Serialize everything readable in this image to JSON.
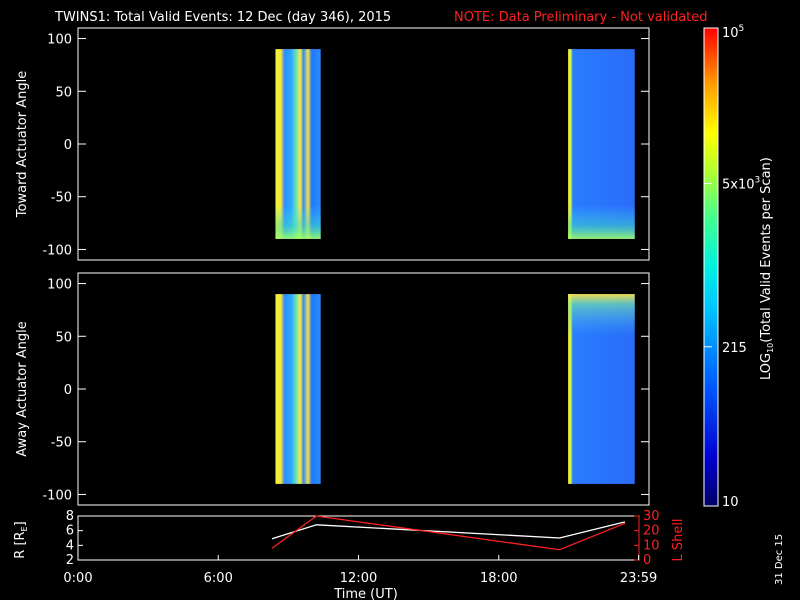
{
  "title": "TWINS1: Total Valid Events: 12 Dec (day 346), 2015",
  "note": "NOTE: Data Preliminary - Not validated",
  "stamp": "31 Dec 15",
  "colors": {
    "note": "#ff2020",
    "lshell": "#ff2020",
    "radius": "#ffffff"
  },
  "chart_data": [
    {
      "type": "heatmap",
      "ylabel": "Toward Actuator Angle",
      "ylim": [
        -110,
        110
      ],
      "yticks": [
        100,
        50,
        0,
        -50,
        -100
      ],
      "y_tick_labels": [
        "100",
        "50",
        "0",
        "-50",
        "-100"
      ],
      "data_blocks": [
        {
          "start_hour": 8.3,
          "end_hour": 10.2,
          "angle_range": [
            -90,
            90
          ]
        },
        {
          "start_hour": 20.6,
          "end_hour": 23.4,
          "angle_range": [
            -90,
            90
          ]
        }
      ]
    },
    {
      "type": "heatmap",
      "ylabel": "Away Actuator Angle",
      "ylim": [
        -110,
        110
      ],
      "yticks": [
        100,
        50,
        0,
        -50,
        -100
      ],
      "y_tick_labels": [
        "100",
        "50",
        "0",
        "-50",
        "-100"
      ],
      "data_blocks": [
        {
          "start_hour": 8.3,
          "end_hour": 10.2,
          "angle_range": [
            -90,
            90
          ]
        },
        {
          "start_hour": 20.6,
          "end_hour": 23.4,
          "angle_range": [
            -90,
            90
          ]
        }
      ]
    },
    {
      "type": "line",
      "ylabel": "R [R",
      "ylabel_sub": "E",
      "ylabel_end": "]",
      "ylim": [
        2,
        8
      ],
      "y_tick_labels": [
        "8",
        "6",
        "4",
        "2"
      ],
      "y2label": "L Shell",
      "y2lim": [
        0,
        30
      ],
      "y2_tick_labels": [
        "30",
        "20",
        "10",
        "0"
      ],
      "series": [
        {
          "color": "#ffffff",
          "x": [
            8.3,
            10.2,
            20.6,
            23.4
          ],
          "y": [
            4.9,
            6.8,
            5.0,
            7.2
          ]
        },
        {
          "color": "#ff2020",
          "axis": "right",
          "x": [
            8.3,
            10.2,
            20.6,
            23.4
          ],
          "y": [
            8,
            30,
            7,
            25
          ]
        }
      ],
      "xlabel": "Time (UT)",
      "xlim": [
        0,
        24
      ],
      "xticks": [
        0,
        6,
        12,
        18,
        23.983
      ],
      "x_tick_labels": [
        "0:00",
        "6:00",
        "12:00",
        "18:00",
        "23:59"
      ]
    }
  ],
  "colorbar": {
    "label": "LOG",
    "label_sub": "10",
    "label_rest": "(Total Valid Events per Scan)",
    "ticks": [
      {
        "base": "10",
        "sup": "5",
        "value": 100000
      },
      {
        "base": "5x10",
        "sup": "3",
        "value": 5000
      },
      {
        "base": "215",
        "sup": "",
        "value": 215
      },
      {
        "base": "10",
        "sup": "",
        "value": 10
      }
    ],
    "range": [
      10,
      100000
    ]
  }
}
